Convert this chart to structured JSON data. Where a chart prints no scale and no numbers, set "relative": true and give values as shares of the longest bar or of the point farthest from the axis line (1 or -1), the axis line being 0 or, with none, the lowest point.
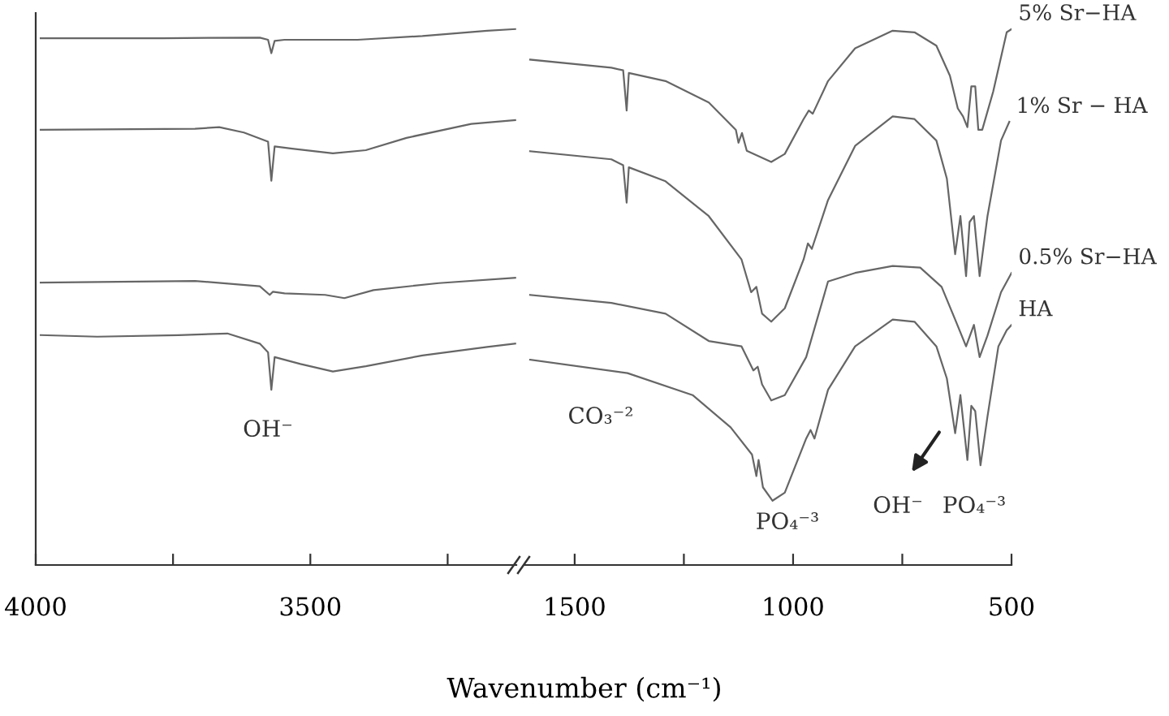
{
  "chart_data": [
    {
      "type": "line",
      "relative": true,
      "xlabel": "Wavenumber (cm⁻¹)",
      "xlim": [
        4000,
        3125
      ],
      "xticks": [
        4000,
        {
          "value": 3750,
          "label": null
        },
        3500,
        {
          "value": 3250,
          "label": null
        }
      ],
      "tick_labels": "x",
      "grid": false,
      "legend": false,
      "annotations": [
        "OH⁻"
      ],
      "series": [
        {
          "color": "#666666",
          "x": [
            3991,
            3769,
            3592,
            3577,
            3571,
            3565,
            3547,
            3414,
            3296,
            3178,
            3127
          ],
          "values": [
            0.983,
            0.983,
            0.984,
            0.98,
            0.955,
            0.978,
            0.98,
            0.98,
            0.987,
            0.997,
            1.0
          ]
        },
        {
          "color": "#666666",
          "x": [
            3991,
            3710,
            3666,
            3621,
            3577,
            3571,
            3565,
            3533,
            3459,
            3399,
            3325,
            3207,
            3127
          ],
          "values": [
            0.812,
            0.814,
            0.817,
            0.807,
            0.79,
            0.717,
            0.781,
            0.777,
            0.768,
            0.774,
            0.797,
            0.823,
            0.83
          ]
        },
        {
          "color": "#666666",
          "x": [
            3991,
            3710,
            3592,
            3574,
            3568,
            3547,
            3473,
            3438,
            3385,
            3266,
            3127
          ],
          "values": [
            0.527,
            0.53,
            0.52,
            0.504,
            0.51,
            0.507,
            0.504,
            0.498,
            0.513,
            0.526,
            0.536
          ]
        },
        {
          "color": "#666666",
          "x": [
            3991,
            3888,
            3740,
            3651,
            3592,
            3577,
            3571,
            3565,
            3518,
            3459,
            3399,
            3296,
            3178,
            3127
          ],
          "values": [
            0.429,
            0.426,
            0.429,
            0.432,
            0.413,
            0.397,
            0.327,
            0.388,
            0.375,
            0.361,
            0.371,
            0.391,
            0.407,
            0.413
          ]
        }
      ]
    },
    {
      "type": "line",
      "relative": true,
      "xlim": [
        1615,
        500
      ],
      "xticks": [
        1500,
        {
          "value": 1250,
          "label": null
        },
        1000,
        {
          "value": 750,
          "label": null
        },
        500
      ],
      "tick_labels": "x",
      "grid": false,
      "legend": false,
      "annotations": [
        "CO₃⁻²",
        "PO₄⁻³",
        "OH⁻",
        "PO₄⁻³"
      ],
      "series": [
        {
          "name": "5% Sr−HA",
          "color": "#666666",
          "x": [
            1602,
            1416,
            1389,
            1381,
            1376,
            1292,
            1193,
            1131,
            1125,
            1117,
            1106,
            1050,
            1019,
            976,
            964,
            955,
            920,
            858,
            772,
            722,
            672,
            641,
            623,
            611,
            601,
            592,
            583,
            576,
            567,
            542,
            511,
            500
          ],
          "values": [
            0.943,
            0.928,
            0.923,
            0.848,
            0.918,
            0.903,
            0.863,
            0.812,
            0.788,
            0.806,
            0.773,
            0.752,
            0.767,
            0.832,
            0.848,
            0.842,
            0.903,
            0.964,
            0.997,
            0.994,
            0.969,
            0.913,
            0.852,
            0.837,
            0.817,
            0.893,
            0.893,
            0.812,
            0.812,
            0.883,
            0.994,
            1.0
          ]
        },
        {
          "name": "1% Sr − HA",
          "color": "#666666",
          "x": [
            1602,
            1416,
            1389,
            1381,
            1376,
            1292,
            1193,
            1118,
            1096,
            1084,
            1071,
            1050,
            1019,
            976,
            966,
            957,
            920,
            858,
            772,
            722,
            672,
            648,
            629,
            617,
            604,
            596,
            586,
            573,
            555,
            524,
            505
          ],
          "values": [
            0.772,
            0.757,
            0.746,
            0.676,
            0.742,
            0.716,
            0.651,
            0.57,
            0.509,
            0.519,
            0.469,
            0.454,
            0.479,
            0.57,
            0.6,
            0.59,
            0.681,
            0.782,
            0.837,
            0.832,
            0.792,
            0.721,
            0.58,
            0.651,
            0.539,
            0.64,
            0.651,
            0.539,
            0.651,
            0.792,
            0.827
          ]
        },
        {
          "name": "0.5% Sr−HA",
          "color": "#666666",
          "x": [
            1602,
            1416,
            1292,
            1193,
            1118,
            1091,
            1081,
            1071,
            1050,
            1019,
            970,
            920,
            858,
            772,
            709,
            660,
            629,
            604,
            586,
            573,
            555,
            524,
            500
          ],
          "values": [
            0.504,
            0.489,
            0.469,
            0.418,
            0.408,
            0.363,
            0.37,
            0.337,
            0.307,
            0.317,
            0.388,
            0.529,
            0.545,
            0.558,
            0.555,
            0.519,
            0.458,
            0.408,
            0.448,
            0.388,
            0.428,
            0.509,
            0.545
          ]
        },
        {
          "name": "HA",
          "color": "#666666",
          "x": [
            1602,
            1379,
            1230,
            1143,
            1094,
            1084,
            1079,
            1069,
            1047,
            1019,
            970,
            960,
            951,
            920,
            858,
            772,
            722,
            672,
            648,
            629,
            617,
            601,
            592,
            583,
            571,
            555,
            530,
            511,
            500
          ],
          "values": [
            0.383,
            0.358,
            0.317,
            0.257,
            0.206,
            0.166,
            0.196,
            0.145,
            0.12,
            0.135,
            0.236,
            0.252,
            0.236,
            0.327,
            0.408,
            0.458,
            0.454,
            0.408,
            0.348,
            0.246,
            0.317,
            0.196,
            0.297,
            0.287,
            0.186,
            0.277,
            0.408,
            0.438,
            0.448
          ]
        }
      ]
    }
  ]
}
